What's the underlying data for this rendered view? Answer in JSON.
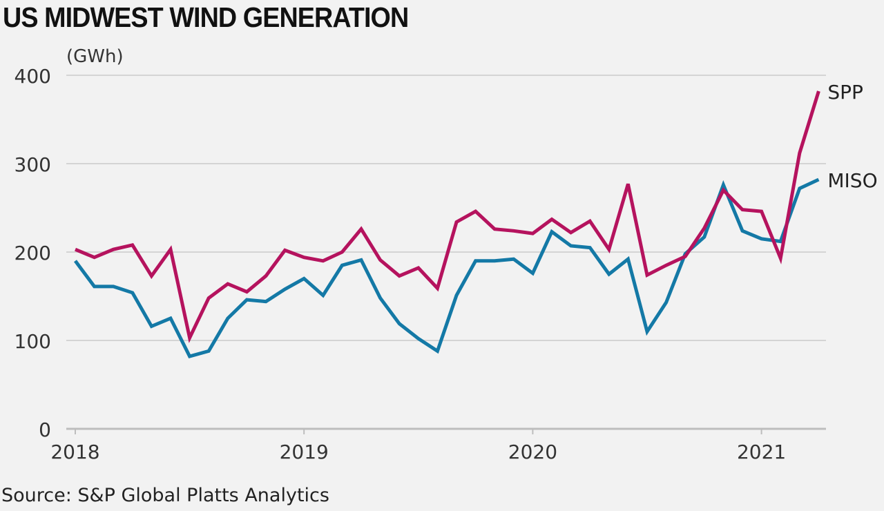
{
  "chart_data": {
    "type": "line",
    "title": "US MIDWEST WIND GENERATION",
    "unit": "(GWh)",
    "source": "Source: S&P Global Platts Analytics",
    "ylim": [
      0,
      400
    ],
    "yticks": [
      "0",
      "100",
      "200",
      "300",
      "400"
    ],
    "xticks": [
      "2018",
      "2019",
      "2020",
      "2021"
    ],
    "x_start": "2018-01",
    "x_end": "2021-04",
    "x_frequency": "monthly",
    "grid": true,
    "series": [
      {
        "name": "SPP",
        "color": "#b5135e",
        "values": [
          203,
          194,
          203,
          208,
          173,
          203,
          103,
          148,
          164,
          155,
          173,
          202,
          194,
          190,
          200,
          226,
          191,
          173,
          182,
          159,
          234,
          246,
          226,
          224,
          221,
          237,
          222,
          235,
          203,
          277,
          174,
          185,
          195,
          227,
          270,
          248,
          246,
          193,
          312,
          382
        ]
      },
      {
        "name": "MISO",
        "color": "#1479a6",
        "values": [
          190,
          161,
          161,
          154,
          116,
          125,
          82,
          88,
          125,
          146,
          144,
          158,
          170,
          151,
          185,
          191,
          148,
          119,
          102,
          88,
          151,
          190,
          190,
          192,
          176,
          223,
          207,
          205,
          175,
          192,
          110,
          143,
          198,
          217,
          276,
          224,
          215,
          212,
          272,
          282
        ]
      }
    ]
  }
}
